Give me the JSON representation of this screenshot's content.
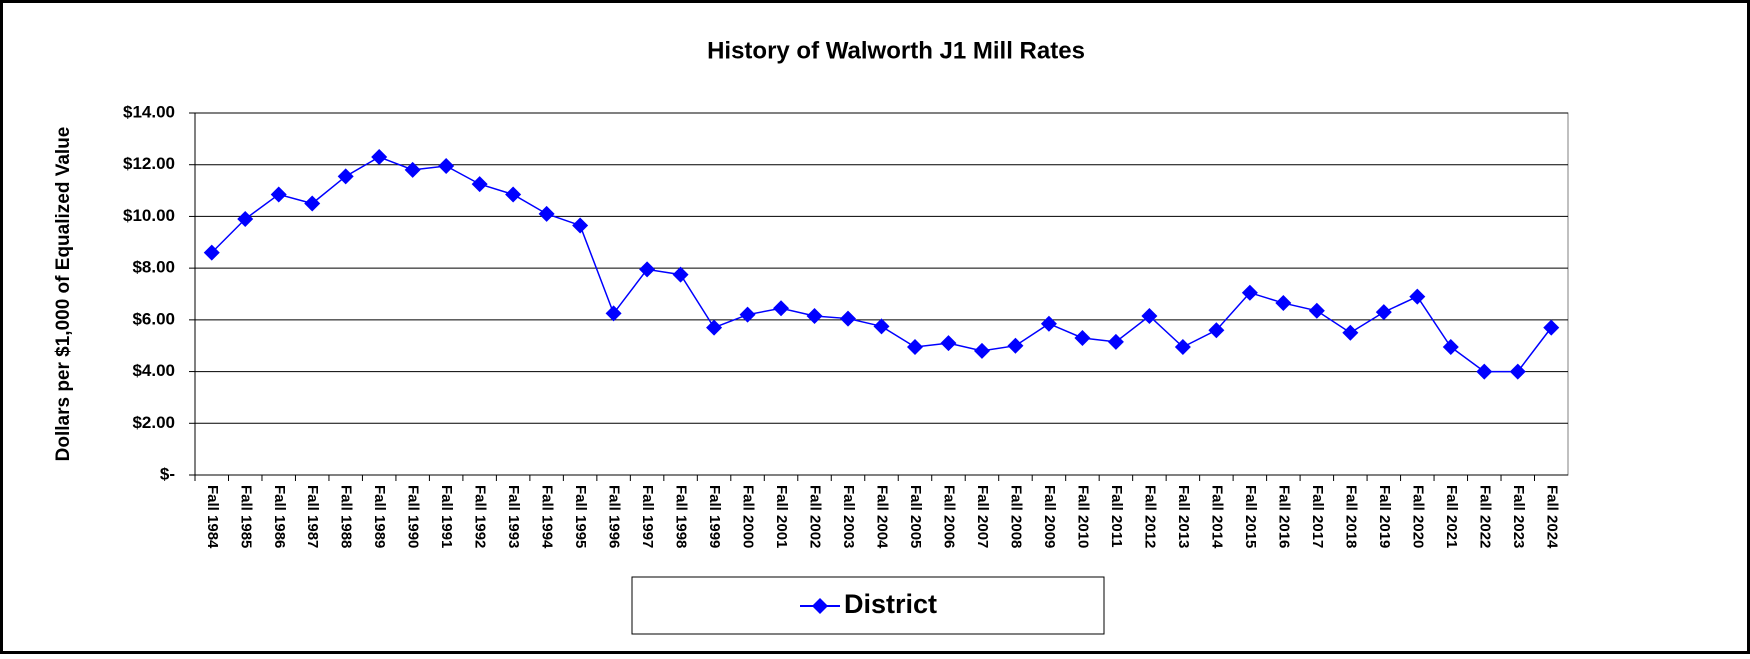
{
  "chart_data": {
    "type": "line",
    "title": "History of Walworth J1 Mill Rates",
    "y_label": "Dollars per $1,000 of Equalized Value",
    "categories": [
      "Fall 1984",
      "Fall 1985",
      "Fall 1986",
      "Fall 1987",
      "Fall 1988",
      "Fall 1989",
      "Fall 1990",
      "Fall 1991",
      "Fall 1992",
      "Fall 1993",
      "Fall 1994",
      "Fall 1995",
      "Fall 1996",
      "Fall 1997",
      "Fall 1998",
      "Fall 1999",
      "Fall 2000",
      "Fall 2001",
      "Fall 2002",
      "Fall 2003",
      "Fall 2004",
      "Fall 2005",
      "Fall 2006",
      "Fall 2007",
      "Fall 2008",
      "Fall 2009",
      "Fall 2010",
      "Fall 2011",
      "Fall 2012",
      "Fall 2013",
      "Fall 2014",
      "Fall 2015",
      "Fall 2016",
      "Fall 2017",
      "Fall 2018",
      "Fall 2019",
      "Fall 2020",
      "Fall 2021",
      "Fall 2022",
      "Fall 2023",
      "Fall 2024"
    ],
    "series": [
      {
        "name": "District",
        "color": "#0000ff",
        "values": [
          8.6,
          9.9,
          10.85,
          10.5,
          11.55,
          12.3,
          11.8,
          11.95,
          11.25,
          10.85,
          10.1,
          9.65,
          6.25,
          7.95,
          7.75,
          5.7,
          6.2,
          6.45,
          6.15,
          6.05,
          5.75,
          4.95,
          5.1,
          4.8,
          5.0,
          5.85,
          5.3,
          5.15,
          6.15,
          4.95,
          5.6,
          7.05,
          6.65,
          6.35,
          5.5,
          6.3,
          6.9,
          4.95,
          4.0,
          4.0,
          5.7
        ]
      }
    ],
    "ylim": [
      0,
      14
    ],
    "yticks": [
      {
        "value": 0,
        "label": "$-"
      },
      {
        "value": 2,
        "label": "$2.00"
      },
      {
        "value": 4,
        "label": "$4.00"
      },
      {
        "value": 6,
        "label": "$6.00"
      },
      {
        "value": 8,
        "label": "$8.00"
      },
      {
        "value": 10,
        "label": "$10.00"
      },
      {
        "value": 12,
        "label": "$12.00"
      },
      {
        "value": 14,
        "label": "$14.00"
      }
    ],
    "grid": true,
    "legend": "bottom"
  }
}
